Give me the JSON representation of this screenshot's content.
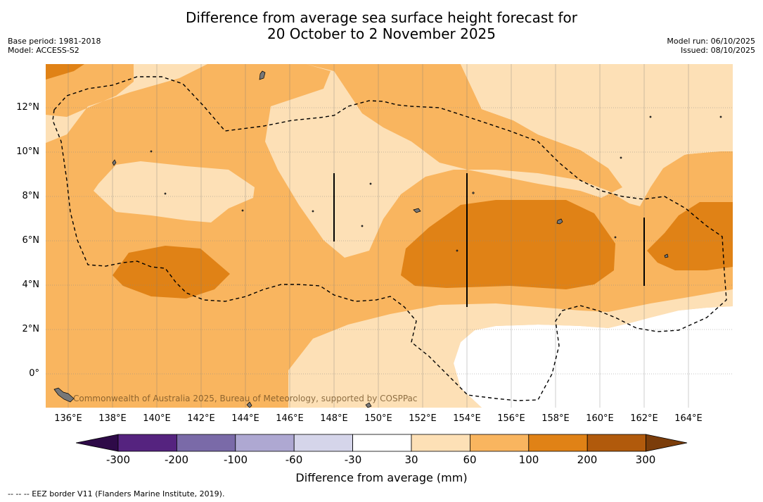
{
  "title_line1": "Difference from average sea surface height forecast for",
  "title_line2": "20 October to 2 November 2025",
  "base_period": "Base period: 1981-2018",
  "model": "Model: ACCESS-S2",
  "model_run": "Model run: 06/10/2025",
  "issued": "Issued: 08/10/2025",
  "lat_labels": [
    "12°N",
    "10°N",
    "8°N",
    "6°N",
    "4°N",
    "2°N",
    "0°"
  ],
  "lon_labels": [
    "136°E",
    "138°E",
    "140°E",
    "142°E",
    "144°E",
    "146°E",
    "148°E",
    "150°E",
    "152°E",
    "154°E",
    "156°E",
    "158°E",
    "160°E",
    "162°E",
    "164°E"
  ],
  "copyright": "Commonwealth of Australia 2025, Bureau of Meteorology, supported by COSPPac",
  "colorbar": {
    "tick_labels": [
      "-300",
      "-200",
      "-100",
      "-60",
      "-30",
      "30",
      "60",
      "100",
      "200",
      "300"
    ],
    "title": "Difference from average (mm)",
    "colors": {
      "below_min": "#2e0a48",
      "c1": "#55237f",
      "c2": "#7a6aa8",
      "c3": "#aea8d2",
      "c4": "#d5d5ea",
      "c5": "#ffffff",
      "c6": "#fde0b6",
      "c7": "#f9b55f",
      "c8": "#e08216",
      "c9": "#b15a0c",
      "above_max": "#7b3d0a"
    }
  },
  "footnote": "--  --  -- EEZ border V11 (Flanders Marine Institute, 2019)."
}
